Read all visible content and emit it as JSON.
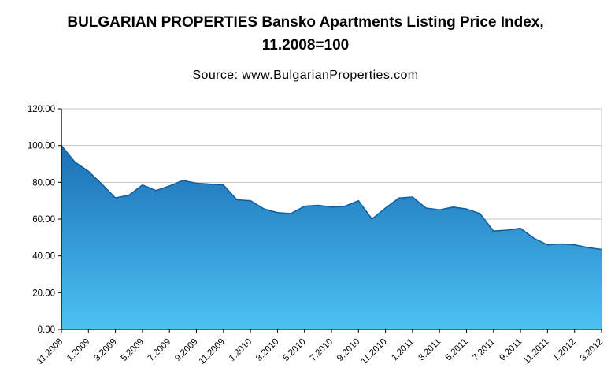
{
  "header": {
    "title_line1": "BULGARIAN PROPERTIES Bansko Apartments Listing Price Index,",
    "title_line2": "11.2008=100",
    "source": "Source: www.BulgarianProperties.com"
  },
  "chart_data": {
    "type": "area",
    "title": "BULGARIAN PROPERTIES Bansko Apartments Listing Price Index, 11.2008=100",
    "x": [
      "11.2008",
      "12.2008",
      "1.2009",
      "2.2009",
      "3.2009",
      "4.2009",
      "5.2009",
      "6.2009",
      "7.2009",
      "8.2009",
      "9.2009",
      "10.2009",
      "11.2009",
      "12.2009",
      "1.2010",
      "2.2010",
      "3.2010",
      "4.2010",
      "5.2010",
      "6.2010",
      "7.2010",
      "8.2010",
      "9.2010",
      "10.2010",
      "11.2010",
      "12.2010",
      "1.2011",
      "2.2011",
      "3.2011",
      "4.2011",
      "5.2011",
      "6.2011",
      "7.2011",
      "8.2011",
      "9.2011",
      "10.2011",
      "11.2011",
      "12.2011",
      "1.2012",
      "2.2012",
      "3.2012"
    ],
    "values": [
      100,
      91,
      86,
      79,
      71.5,
      73,
      78.5,
      75.5,
      78,
      81,
      79.5,
      79,
      78.5,
      70.5,
      70,
      65.5,
      63.5,
      63,
      67,
      67.5,
      66.5,
      67,
      70,
      60,
      66,
      71.5,
      72,
      66,
      65,
      66.5,
      65.5,
      63,
      53.5,
      54,
      55,
      49.5,
      46,
      46.5,
      46,
      44.5,
      43.5
    ],
    "x_tick_step": 2,
    "x_tick_labels": [
      "11.2008",
      "1.2009",
      "3.2009",
      "5.2009",
      "7.2009",
      "9.2009",
      "11.2009",
      "1.2010",
      "3.2010",
      "5.2010",
      "7.2010",
      "9.2010",
      "11.2010",
      "1.2011",
      "3.2011",
      "5.2011",
      "7.2011",
      "9.2011",
      "11.2011",
      "1.2012"
    ],
    "y_ticks": [
      0,
      20,
      40,
      60,
      80,
      100,
      120
    ],
    "y_tick_labels": [
      "0.00",
      "20.00",
      "40.00",
      "60.00",
      "80.00",
      "100.00",
      "120.00"
    ],
    "ylim": [
      0,
      120
    ],
    "grid": "horizontal",
    "legend": "none",
    "colors": {
      "area_top": "#1b6fb5",
      "area_bottom": "#4cc2f2",
      "line": "#145f9f",
      "grid": "#c6c6c6",
      "axis": "#000000",
      "text": "#000000"
    }
  }
}
